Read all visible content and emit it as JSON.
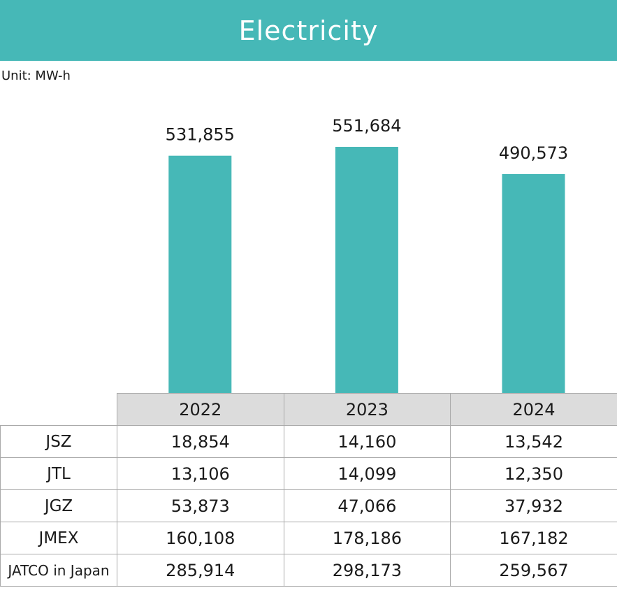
{
  "header": {
    "title": "Electricity"
  },
  "unit_label": "Unit: MW-h",
  "colors": {
    "accent": "#46b8b7",
    "header_cell": "#dcdcdc",
    "border": "#a9a9a9"
  },
  "chart_data": {
    "type": "bar",
    "categories": [
      "2022",
      "2023",
      "2024"
    ],
    "values": [
      531855,
      551684,
      490573
    ],
    "value_labels": [
      "531,855",
      "551,684",
      "490,573"
    ],
    "title": "Electricity",
    "unit": "MW-h",
    "xlabel": "",
    "ylabel": "",
    "ylim": [
      0,
      551684
    ],
    "grid": false,
    "legend": "none"
  },
  "table": {
    "columns": [
      "2022",
      "2023",
      "2024"
    ],
    "rows": [
      {
        "label": "JSZ",
        "values": [
          "18,854",
          "14,160",
          "13,542"
        ]
      },
      {
        "label": "JTL",
        "values": [
          "13,106",
          "14,099",
          "12,350"
        ]
      },
      {
        "label": "JGZ",
        "values": [
          "53,873",
          "47,066",
          "37,932"
        ]
      },
      {
        "label": "JMEX",
        "values": [
          "160,108",
          "178,186",
          "167,182"
        ]
      },
      {
        "label": "JATCO in Japan",
        "values": [
          "285,914",
          "298,173",
          "259,567"
        ]
      }
    ]
  }
}
